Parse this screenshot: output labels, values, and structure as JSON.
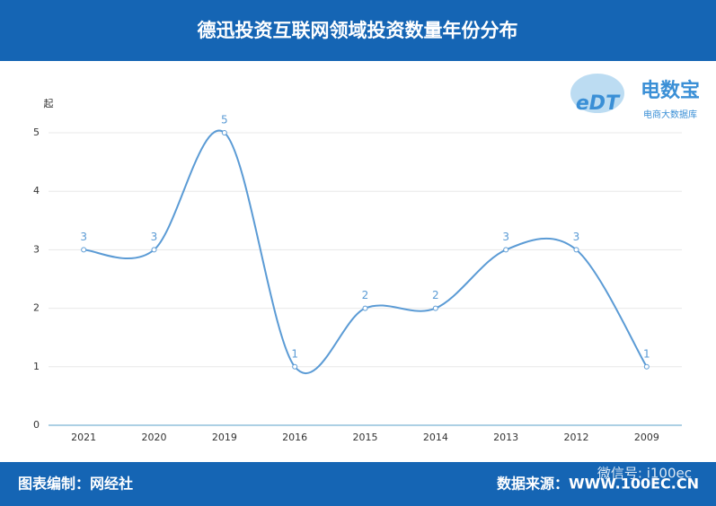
{
  "header": {
    "title": "德迅投资互联网领域投资数量年份分布"
  },
  "logo": {
    "mark": "eDT",
    "name": "电数宝",
    "subtitle": "电商大数据库"
  },
  "chart_data": {
    "type": "line",
    "y_label": "起",
    "categories": [
      "2021",
      "2020",
      "2019",
      "2016",
      "2015",
      "2014",
      "2013",
      "2012",
      "2009"
    ],
    "values": [
      3,
      3,
      5,
      1,
      2,
      2,
      3,
      3,
      1
    ],
    "color": "#5b9bd5",
    "ylim": [
      0,
      5
    ],
    "yticks": [
      0,
      1,
      2,
      3,
      4,
      5
    ],
    "grid": true
  },
  "footer": {
    "left": "图表编制：网经社",
    "right": "数据来源：WWW.100EC.CN",
    "watermark": "微信号: i100ec"
  }
}
